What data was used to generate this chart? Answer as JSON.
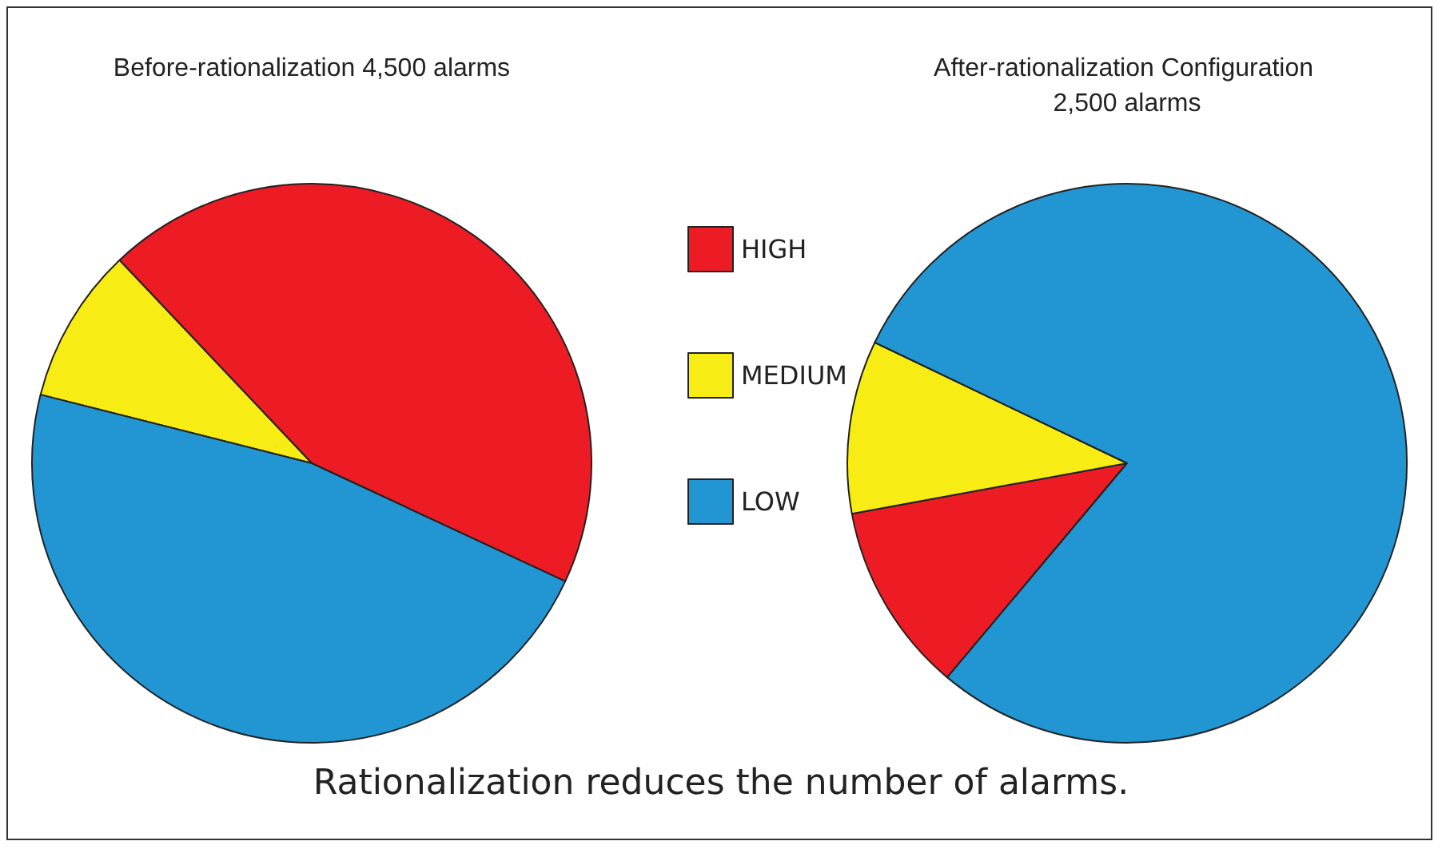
{
  "chart_data": {
    "type": "pie",
    "categories": [
      "HIGH",
      "MEDIUM",
      "LOW"
    ],
    "colors": [
      "#ed1c24",
      "#f7ec13",
      "#2196d3"
    ],
    "legend": "right",
    "annotations": [
      "Rationalization reduces the number of alarms."
    ],
    "series": [
      {
        "name": "Before-rationalization 4,500 alarms",
        "values": [
          44,
          9,
          47
        ]
      },
      {
        "name": "After-rationalization Configuration 2,500 alarms",
        "values": [
          11,
          10,
          79
        ]
      }
    ]
  }
}
